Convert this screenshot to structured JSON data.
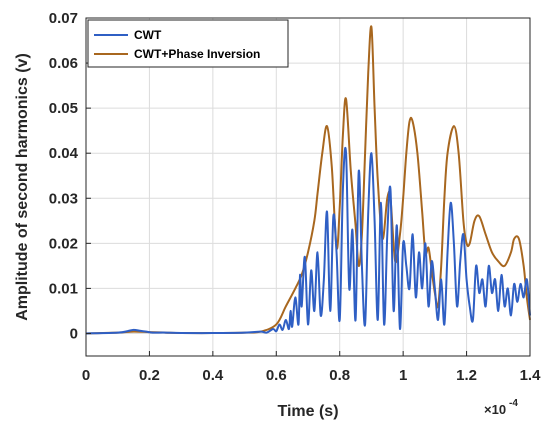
{
  "chart_data": {
    "type": "line",
    "xlabel": "Time (s)",
    "ylabel": "Amplitude of second harmonics (v)",
    "x_exponent_label": "×10",
    "x_exponent_power": "-4",
    "xlim": [
      0,
      1.4
    ],
    "ylim": [
      -0.005,
      0.07
    ],
    "xticks": [
      "0",
      "0.2",
      "0.4",
      "0.6",
      "0.8",
      "1",
      "1.2",
      "1.4"
    ],
    "xtick_values": [
      0,
      0.2,
      0.4,
      0.6,
      0.8,
      1.0,
      1.2,
      1.4
    ],
    "yticks": [
      "0",
      "0.01",
      "0.02",
      "0.03",
      "0.04",
      "0.05",
      "0.06",
      "0.07"
    ],
    "ytick_values": [
      0,
      0.01,
      0.02,
      0.03,
      0.04,
      0.05,
      0.06,
      0.07
    ],
    "grid": true,
    "legend_position": "top-left",
    "series": [
      {
        "name": "CWT",
        "color": "#2f5fc4",
        "x": [
          0,
          0.1,
          0.13,
          0.15,
          0.17,
          0.19,
          0.21,
          0.25,
          0.3,
          0.4,
          0.5,
          0.55,
          0.57,
          0.59,
          0.6,
          0.61,
          0.62,
          0.63,
          0.64,
          0.645,
          0.65,
          0.66,
          0.67,
          0.675,
          0.68,
          0.69,
          0.7,
          0.71,
          0.72,
          0.73,
          0.74,
          0.75,
          0.76,
          0.77,
          0.78,
          0.79,
          0.8,
          0.81,
          0.82,
          0.83,
          0.84,
          0.85,
          0.86,
          0.87,
          0.88,
          0.89,
          0.9,
          0.91,
          0.92,
          0.93,
          0.94,
          0.95,
          0.96,
          0.97,
          0.98,
          0.99,
          1.0,
          1.01,
          1.02,
          1.03,
          1.04,
          1.05,
          1.06,
          1.07,
          1.08,
          1.09,
          1.1,
          1.11,
          1.12,
          1.13,
          1.14,
          1.15,
          1.16,
          1.17,
          1.18,
          1.19,
          1.2,
          1.21,
          1.22,
          1.23,
          1.24,
          1.25,
          1.26,
          1.27,
          1.28,
          1.29,
          1.3,
          1.31,
          1.32,
          1.33,
          1.34,
          1.35,
          1.36,
          1.37,
          1.38,
          1.39,
          1.4
        ],
        "y": [
          0,
          0.0002,
          0.0005,
          0.0008,
          0.0006,
          0.0004,
          0.0002,
          0.0002,
          0.0001,
          0.0001,
          0.0002,
          0.0004,
          0.0002,
          0.001,
          0.0005,
          0.002,
          0.0008,
          0.003,
          0.001,
          0.005,
          0.0015,
          0.008,
          0.002,
          0.013,
          0.006,
          0.017,
          0.002,
          0.014,
          0.005,
          0.018,
          0.004,
          0.012,
          0.027,
          0.005,
          0.026,
          0.018,
          0.003,
          0.032,
          0.04,
          0.01,
          0.023,
          0.003,
          0.036,
          0.015,
          0.002,
          0.027,
          0.04,
          0.025,
          0.003,
          0.029,
          0.002,
          0.022,
          0.032,
          0.005,
          0.024,
          0.001,
          0.02,
          0.015,
          0.01,
          0.022,
          0.008,
          0.018,
          0.01,
          0.02,
          0.006,
          0.016,
          0.01,
          0.003,
          0.012,
          0.002,
          0.018,
          0.029,
          0.02,
          0.006,
          0.016,
          0.022,
          0.012,
          0.006,
          0.003,
          0.015,
          0.009,
          0.012,
          0.006,
          0.015,
          0.009,
          0.012,
          0.005,
          0.013,
          0.006,
          0.01,
          0.004,
          0.011,
          0.007,
          0.011,
          0.008,
          0.012,
          0.004
        ]
      },
      {
        "name": "CWT+Phase Inversion",
        "color": "#a8671f",
        "x": [
          0,
          0.1,
          0.15,
          0.2,
          0.25,
          0.3,
          0.4,
          0.5,
          0.55,
          0.6,
          0.63,
          0.66,
          0.68,
          0.7,
          0.72,
          0.73,
          0.745,
          0.76,
          0.775,
          0.79,
          0.8,
          0.81,
          0.82,
          0.835,
          0.85,
          0.86,
          0.87,
          0.88,
          0.89,
          0.9,
          0.91,
          0.92,
          0.935,
          0.95,
          0.96,
          0.975,
          0.99,
          1.0,
          1.01,
          1.02,
          1.03,
          1.045,
          1.06,
          1.07,
          1.08,
          1.09,
          1.1,
          1.11,
          1.12,
          1.13,
          1.14,
          1.16,
          1.175,
          1.19,
          1.2,
          1.21,
          1.225,
          1.24,
          1.26,
          1.28,
          1.3,
          1.32,
          1.34,
          1.35,
          1.365,
          1.38,
          1.39,
          1.4
        ],
        "y": [
          0,
          0.0002,
          0.0004,
          0.0003,
          0.0002,
          0.0001,
          0.0001,
          0.0002,
          0.0004,
          0.002,
          0.006,
          0.01,
          0.013,
          0.018,
          0.025,
          0.031,
          0.04,
          0.046,
          0.037,
          0.019,
          0.028,
          0.044,
          0.052,
          0.036,
          0.024,
          0.015,
          0.022,
          0.04,
          0.058,
          0.068,
          0.05,
          0.034,
          0.021,
          0.03,
          0.03,
          0.016,
          0.022,
          0.03,
          0.04,
          0.047,
          0.047,
          0.04,
          0.027,
          0.018,
          0.019,
          0.014,
          0.009,
          0.006,
          0.015,
          0.03,
          0.04,
          0.046,
          0.04,
          0.025,
          0.02,
          0.02,
          0.025,
          0.026,
          0.022,
          0.018,
          0.016,
          0.015,
          0.018,
          0.021,
          0.021,
          0.015,
          0.008,
          0.003
        ]
      }
    ]
  }
}
